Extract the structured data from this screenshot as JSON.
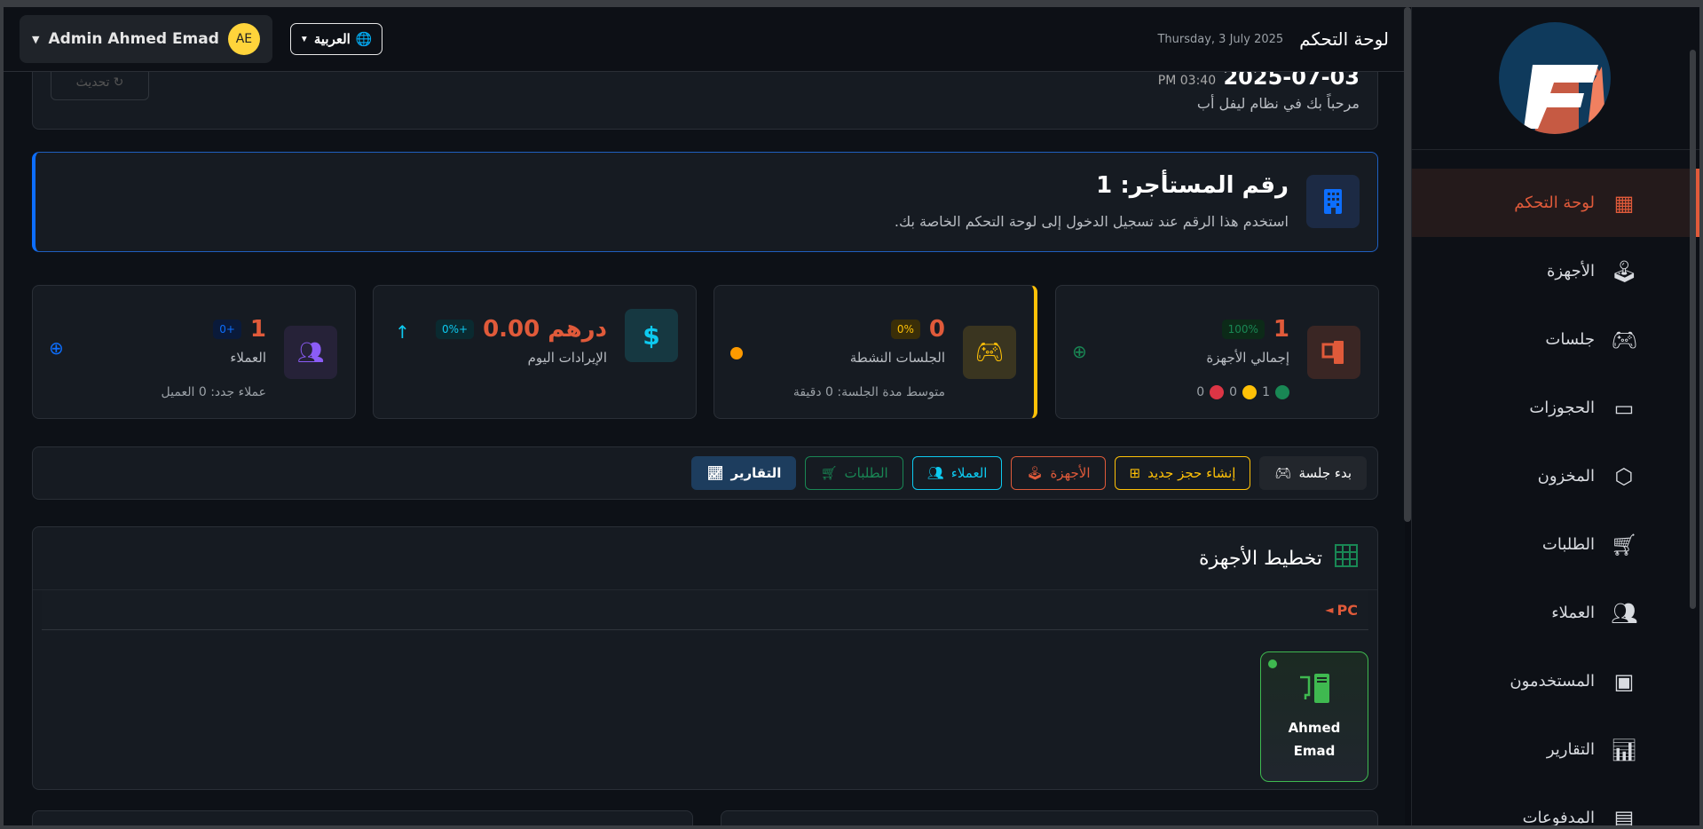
{
  "header": {
    "title": "لوحة التحكم",
    "date": "Thursday, 3 July 2025",
    "language": "العربية",
    "user_name": "Admin Ahmed Emad",
    "user_initials": "AE"
  },
  "welcome": {
    "datetime": "2025-07-03",
    "time": "PM 03:40",
    "message": "مرحباً بك في نظام ليفل أب",
    "refresh_label": "تحديث"
  },
  "tenant": {
    "title": "رقم المستأجر: 1",
    "subtitle": "استخدم هذا الرقم عند تسجيل الدخول إلى لوحة التحكم الخاصة بك."
  },
  "stats": [
    {
      "value": "1",
      "badge": "100%",
      "label": "إجمالي الأجهزة",
      "counts": [
        "1",
        "0",
        "0"
      ],
      "color": "#e05a3a"
    },
    {
      "value": "0",
      "badge": "0%",
      "label": "الجلسات النشطة",
      "sub": "متوسط مدة الجلسة: 0 دقيقة",
      "color": "#ffc107"
    },
    {
      "value": "درهم 0.00",
      "badge": "+0%",
      "label": "الإيرادات اليوم",
      "color": "#0dcaf0"
    },
    {
      "value": "1",
      "badge": "+0",
      "label": "العملاء",
      "sub": "عملاء جدد: 0 العميل",
      "color": "#6f42c1"
    }
  ],
  "actions": [
    "بدء جلسة",
    "إنشاء حجز جديد",
    "الأجهزة",
    "العملاء",
    "الطلبات",
    "التقارير"
  ],
  "layout": {
    "title": "تخطيط الأجهزة",
    "group": "PC",
    "device_name": "Ahmed Emad",
    "device_status": "online"
  },
  "sidebar": {
    "items": [
      {
        "label": "لوحة التحكم",
        "icon": "dashboard-icon",
        "active": true
      },
      {
        "label": "الأجهزة",
        "icon": "joystick-icon"
      },
      {
        "label": "جلسات",
        "icon": "gamepad-icon"
      },
      {
        "label": "الحجوزات",
        "icon": "calendar-icon"
      },
      {
        "label": "المخزون",
        "icon": "box-icon"
      },
      {
        "label": "الطلبات",
        "icon": "cart-icon"
      },
      {
        "label": "العملاء",
        "icon": "people-icon"
      },
      {
        "label": "المستخدمون",
        "icon": "user-badge-icon"
      },
      {
        "label": "التقارير",
        "icon": "bar-chart-icon"
      },
      {
        "label": "المدفوعات",
        "icon": "cash-icon"
      }
    ]
  },
  "colors": {
    "accent": "#e05a3a",
    "bg": "#0d1117",
    "card": "#161b22"
  }
}
